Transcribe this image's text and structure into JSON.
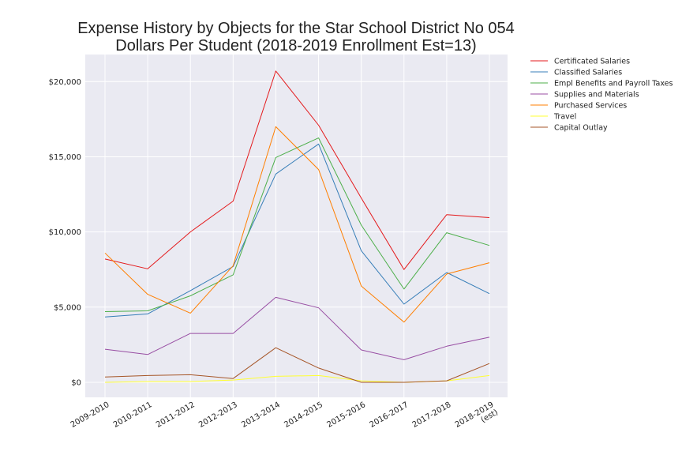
{
  "chart_data": {
    "type": "line",
    "title": [
      "Expense History by Objects for the Star School District No 054",
      "Dollars Per Student (2018-2019 Enrollment Est=13)"
    ],
    "xlabel": "",
    "ylabel": "",
    "categories": [
      "2009-2010",
      "2010-2011",
      "2011-2012",
      "2012-2013",
      "2013-2014",
      "2014-2015",
      "2015-2016",
      "2016-2017",
      "2017-2018",
      [
        "2018-2019",
        "(est)"
      ]
    ],
    "yticks": [
      0,
      5000,
      10000,
      15000,
      20000
    ],
    "ytick_labels": [
      "$0",
      "$5,000",
      "$10,000",
      "$15,000",
      "$20,000"
    ],
    "ylim": [
      -1000,
      21800
    ],
    "grid": true,
    "legend_position": "outside-right-top",
    "background": "#eaeaf2",
    "series": [
      {
        "name": "Certificated Salaries",
        "color": "#e41a1c",
        "values": [
          8200,
          7550,
          10000,
          12050,
          20700,
          17100,
          12250,
          7500,
          11150,
          10950
        ]
      },
      {
        "name": "Classified Salaries",
        "color": "#377eb8",
        "values": [
          4350,
          4550,
          6100,
          7700,
          13850,
          15850,
          8750,
          5200,
          7300,
          5900
        ]
      },
      {
        "name": "Empl Benefits and Payroll Taxes",
        "color": "#4daf4a",
        "values": [
          4700,
          4750,
          5750,
          7150,
          14950,
          16250,
          10450,
          6200,
          9950,
          9100
        ]
      },
      {
        "name": "Supplies and Materials",
        "color": "#984ea3",
        "values": [
          2200,
          1850,
          3250,
          3250,
          5650,
          4950,
          2150,
          1500,
          2400,
          3000
        ]
      },
      {
        "name": "Purchased Services",
        "color": "#ff7f00",
        "values": [
          8600,
          5850,
          4600,
          7750,
          17000,
          14150,
          6400,
          4000,
          7200,
          7950
        ]
      },
      {
        "name": "Travel",
        "color": "#ffff33",
        "values": [
          0,
          50,
          50,
          150,
          400,
          450,
          100,
          0,
          100,
          450
        ]
      },
      {
        "name": "Capital Outlay",
        "color": "#a65628",
        "values": [
          350,
          450,
          500,
          250,
          2300,
          950,
          0,
          0,
          100,
          1250
        ]
      }
    ]
  }
}
